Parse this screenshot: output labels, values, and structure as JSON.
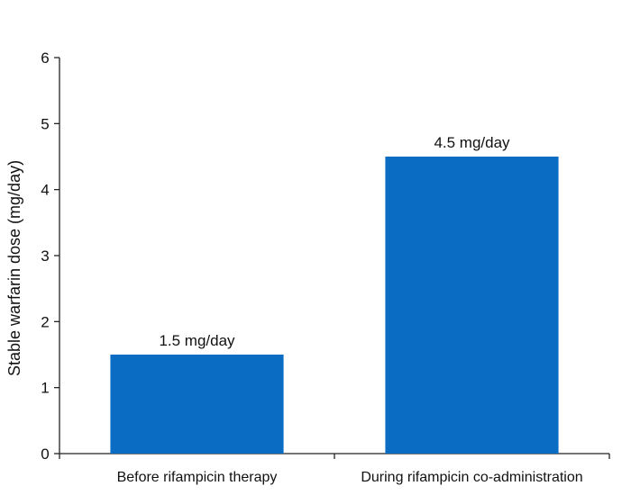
{
  "chart_data": {
    "type": "bar",
    "categories": [
      "Before rifampicin therapy",
      "During rifampicin co-administration"
    ],
    "values": [
      1.5,
      4.5
    ],
    "data_labels": [
      "1.5 mg/day",
      "4.5 mg/day"
    ],
    "title": "",
    "xlabel": "",
    "ylabel": "Stable warfarin dose (mg/day)",
    "ylim": [
      0,
      6
    ],
    "yticks": [
      0,
      1,
      2,
      3,
      4,
      5,
      6
    ],
    "grid": false,
    "legend": "none",
    "bar_color": "#0b6cc4"
  }
}
